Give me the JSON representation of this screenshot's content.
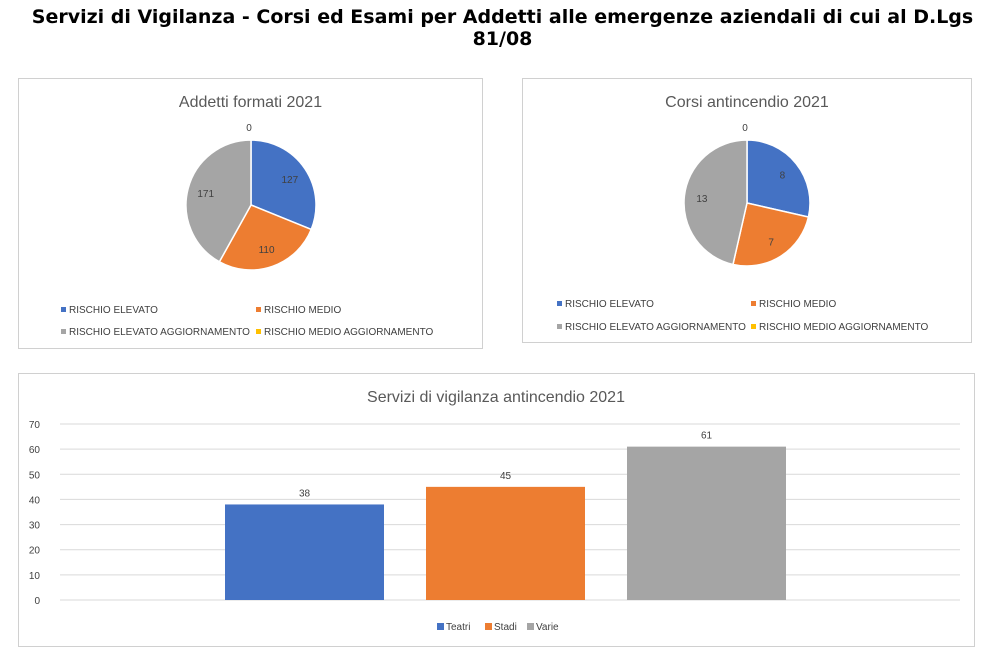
{
  "page_title": "Servizi di Vigilanza - Corsi ed Esami per Addetti alle emergenze aziendali di cui al D.Lgs 81/08",
  "colors": {
    "blue": "#4472c4",
    "orange": "#ed7d31",
    "gray": "#a5a5a5",
    "yellow": "#ffc000"
  },
  "chart_data": [
    {
      "type": "pie",
      "title": "Addetti formati 2021",
      "categories": [
        "RISCHIO ELEVATO",
        "RISCHIO MEDIO",
        "RISCHIO ELEVATO AGGIORNAMENTO",
        "RISCHIO MEDIO AGGIORNAMENTO"
      ],
      "values": [
        127,
        110,
        171,
        0
      ],
      "colors": [
        "#4472c4",
        "#ed7d31",
        "#a5a5a5",
        "#ffc000"
      ]
    },
    {
      "type": "pie",
      "title": "Corsi antincendio 2021",
      "categories": [
        "RISCHIO ELEVATO",
        "RISCHIO MEDIO",
        "RISCHIO ELEVATO AGGIORNAMENTO",
        "RISCHIO MEDIO AGGIORNAMENTO"
      ],
      "values": [
        8,
        7,
        13,
        0
      ],
      "colors": [
        "#4472c4",
        "#ed7d31",
        "#a5a5a5",
        "#ffc000"
      ]
    },
    {
      "type": "bar",
      "title": "Servizi di vigilanza antincendio 2021",
      "categories": [
        "Teatri",
        "Stadi",
        "Varie"
      ],
      "values": [
        38,
        45,
        61
      ],
      "colors": [
        "#4472c4",
        "#ed7d31",
        "#a5a5a5"
      ],
      "ylim": [
        0,
        70
      ],
      "yticks": [
        0,
        10,
        20,
        30,
        40,
        50,
        60,
        70
      ],
      "grid": true,
      "legend": "bottom"
    }
  ]
}
